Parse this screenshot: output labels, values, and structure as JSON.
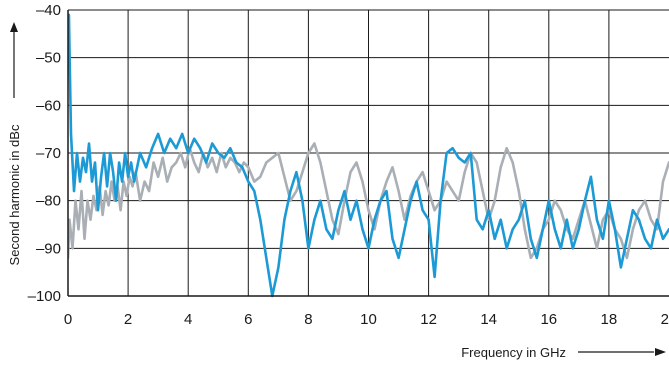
{
  "chart_data": {
    "type": "line",
    "title": "",
    "xlabel": "Frequency in GHz",
    "ylabel": "Second harmonic in dBc",
    "xlim": [
      0,
      20
    ],
    "ylim": [
      -100,
      -40
    ],
    "x_ticks": [
      {
        "value": 0,
        "label": "0"
      },
      {
        "value": 2,
        "label": "2"
      },
      {
        "value": 4,
        "label": "4"
      },
      {
        "value": 6,
        "label": "6"
      },
      {
        "value": 8,
        "label": "8"
      },
      {
        "value": 10,
        "label": "10"
      },
      {
        "value": 12,
        "label": "12"
      },
      {
        "value": 14,
        "label": "14"
      },
      {
        "value": 16,
        "label": "16"
      },
      {
        "value": 18,
        "label": "18"
      },
      {
        "value": 20,
        "label": "20"
      }
    ],
    "y_ticks": [
      {
        "value": -40,
        "label": "–40"
      },
      {
        "value": -50,
        "label": "–50"
      },
      {
        "value": -60,
        "label": "–60"
      },
      {
        "value": -70,
        "label": "–70"
      },
      {
        "value": -80,
        "label": "–80"
      },
      {
        "value": -90,
        "label": "–90"
      },
      {
        "value": -100,
        "label": "–100"
      }
    ],
    "grid": true,
    "series": [
      {
        "color": "#a9afb5",
        "x": [
          0,
          0.05,
          0.15,
          0.25,
          0.35,
          0.45,
          0.55,
          0.65,
          0.75,
          0.85,
          0.95,
          1.05,
          1.15,
          1.25,
          1.35,
          1.45,
          1.55,
          1.65,
          1.75,
          1.85,
          1.95,
          2.05,
          2.15,
          2.25,
          2.4,
          2.55,
          2.7,
          2.85,
          3.0,
          3.15,
          3.3,
          3.45,
          3.6,
          3.75,
          3.9,
          4.05,
          4.2,
          4.35,
          4.5,
          4.65,
          4.8,
          4.95,
          5.1,
          5.25,
          5.4,
          5.55,
          5.7,
          5.85,
          6.0,
          6.2,
          6.4,
          6.6,
          6.8,
          7.0,
          7.2,
          7.4,
          7.6,
          7.8,
          8.0,
          8.2,
          8.4,
          8.6,
          8.8,
          9.0,
          9.2,
          9.4,
          9.6,
          9.8,
          10.0,
          10.2,
          10.4,
          10.6,
          10.8,
          11.0,
          11.2,
          11.4,
          11.6,
          11.8,
          12.0,
          12.2,
          12.4,
          12.6,
          12.8,
          13.0,
          13.2,
          13.4,
          13.6,
          13.8,
          14.0,
          14.2,
          14.4,
          14.6,
          14.8,
          15.0,
          15.2,
          15.4,
          15.6,
          15.8,
          16.0,
          16.2,
          16.4,
          16.6,
          16.8,
          17.0,
          17.2,
          17.4,
          17.6,
          17.8,
          18.0,
          18.2,
          18.4,
          18.6,
          18.8,
          19.0,
          19.2,
          19.4,
          19.6,
          19.8,
          20.0
        ],
        "y": [
          -92,
          -84,
          -90,
          -80,
          -86,
          -78,
          -88,
          -80,
          -84,
          -79,
          -82,
          -77,
          -83,
          -78,
          -81,
          -76,
          -80,
          -77,
          -82,
          -76,
          -79,
          -75,
          -77,
          -74,
          -80,
          -76,
          -78,
          -72,
          -75,
          -71,
          -76,
          -73,
          -72,
          -70,
          -73,
          -69,
          -72,
          -74,
          -70,
          -73,
          -71,
          -74,
          -70,
          -73,
          -71,
          -72,
          -74,
          -72,
          -73,
          -76,
          -75,
          -72,
          -71,
          -70,
          -75,
          -80,
          -78,
          -74,
          -70,
          -68,
          -72,
          -78,
          -84,
          -87,
          -80,
          -74,
          -72,
          -76,
          -82,
          -86,
          -80,
          -76,
          -73,
          -78,
          -84,
          -79,
          -76,
          -74,
          -78,
          -82,
          -80,
          -76,
          -78,
          -80,
          -74,
          -70,
          -72,
          -78,
          -84,
          -80,
          -73,
          -69,
          -72,
          -78,
          -86,
          -92,
          -90,
          -86,
          -84,
          -80,
          -82,
          -86,
          -88,
          -84,
          -80,
          -85,
          -90,
          -84,
          -82,
          -86,
          -88,
          -92,
          -86,
          -82,
          -80,
          -84,
          -86,
          -76,
          -72
        ]
      },
      {
        "color": "#1c9ad6",
        "x": [
          0,
          0.03,
          0.06,
          0.1,
          0.15,
          0.2,
          0.3,
          0.4,
          0.5,
          0.6,
          0.7,
          0.8,
          0.9,
          1.0,
          1.1,
          1.2,
          1.3,
          1.4,
          1.5,
          1.6,
          1.7,
          1.8,
          1.9,
          2.0,
          2.1,
          2.2,
          2.4,
          2.6,
          2.8,
          3.0,
          3.2,
          3.4,
          3.6,
          3.8,
          4.0,
          4.2,
          4.4,
          4.6,
          4.8,
          5.0,
          5.2,
          5.4,
          5.6,
          5.8,
          6.0,
          6.2,
          6.4,
          6.6,
          6.8,
          7.0,
          7.2,
          7.4,
          7.6,
          7.8,
          8.0,
          8.2,
          8.4,
          8.6,
          8.8,
          9.0,
          9.2,
          9.4,
          9.6,
          9.8,
          10.0,
          10.2,
          10.4,
          10.6,
          10.8,
          11.0,
          11.2,
          11.4,
          11.6,
          11.8,
          12.0,
          12.2,
          12.4,
          12.6,
          12.8,
          13.0,
          13.2,
          13.4,
          13.6,
          13.8,
          14.0,
          14.2,
          14.4,
          14.6,
          14.8,
          15.0,
          15.2,
          15.4,
          15.6,
          15.8,
          16.0,
          16.2,
          16.4,
          16.6,
          16.8,
          17.0,
          17.2,
          17.4,
          17.6,
          17.8,
          18.0,
          18.2,
          18.4,
          18.6,
          18.8,
          19.0,
          19.2,
          19.4,
          19.6,
          19.8,
          20.0
        ],
        "y": [
          -45,
          -41,
          -52,
          -66,
          -72,
          -78,
          -70,
          -76,
          -71,
          -74,
          -68,
          -76,
          -72,
          -82,
          -75,
          -70,
          -77,
          -70,
          -74,
          -80,
          -72,
          -76,
          -70,
          -75,
          -72,
          -76,
          -70,
          -73,
          -69,
          -66,
          -70,
          -67,
          -69,
          -66,
          -70,
          -67,
          -69,
          -72,
          -68,
          -70,
          -71,
          -69,
          -72,
          -73,
          -76,
          -78,
          -84,
          -92,
          -100,
          -94,
          -84,
          -78,
          -74,
          -80,
          -90,
          -84,
          -80,
          -86,
          -88,
          -82,
          -78,
          -84,
          -80,
          -86,
          -90,
          -84,
          -80,
          -78,
          -88,
          -92,
          -86,
          -80,
          -76,
          -82,
          -84,
          -96,
          -80,
          -70,
          -69,
          -71,
          -72,
          -70,
          -84,
          -86,
          -82,
          -88,
          -84,
          -90,
          -86,
          -84,
          -80,
          -88,
          -92,
          -86,
          -80,
          -86,
          -90,
          -84,
          -90,
          -86,
          -80,
          -75,
          -84,
          -88,
          -80,
          -86,
          -94,
          -88,
          -82,
          -84,
          -88,
          -90,
          -84,
          -88,
          -86
        ]
      }
    ]
  }
}
